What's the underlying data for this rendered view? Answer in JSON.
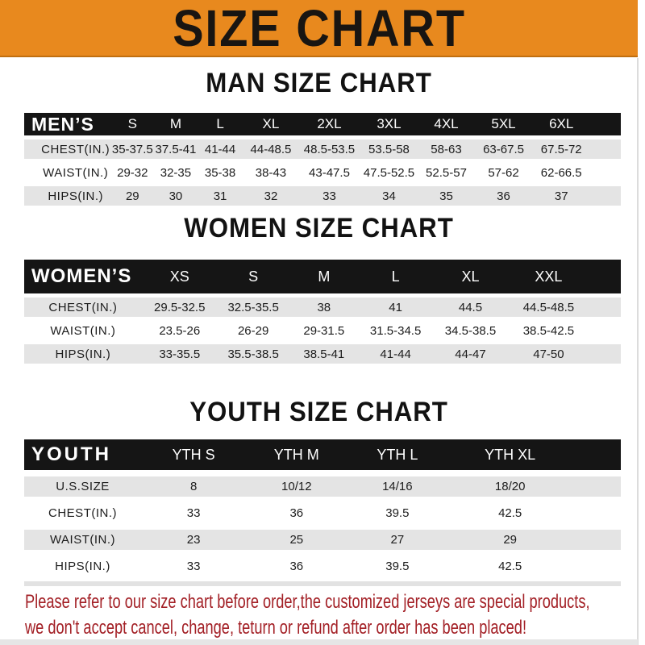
{
  "banner": {
    "title": "SIZE CHART",
    "bg_color": "#E8891E",
    "text_color": "#181512"
  },
  "sections": {
    "men": {
      "title": "MAN SIZE CHART",
      "table": {
        "corner_label": "MEN’S",
        "columns": [
          "S",
          "M",
          "L",
          "XL",
          "2XL",
          "3XL",
          "4XL",
          "5XL",
          "6XL"
        ],
        "rows": [
          {
            "label": "CHEST(IN.)",
            "values": [
              "35-37.5",
              "37.5-41",
              "41-44",
              "44-48.5",
              "48.5-53.5",
              "53.5-58",
              "58-63",
              "63-67.5",
              "67.5-72"
            ]
          },
          {
            "label": "WAIST(IN.)",
            "values": [
              "29-32",
              "32-35",
              "35-38",
              "38-43",
              "43-47.5",
              "47.5-52.5",
              "52.5-57",
              "57-62",
              "62-66.5"
            ]
          },
          {
            "label": "HIPS(IN.)",
            "values": [
              "29",
              "30",
              "31",
              "32",
              "33",
              "34",
              "35",
              "36",
              "37"
            ]
          }
        ]
      }
    },
    "women": {
      "title": "WOMEN SIZE CHART",
      "table": {
        "corner_label": "WOMEN’S",
        "columns": [
          "XS",
          "S",
          "M",
          "L",
          "XL",
          "XXL"
        ],
        "rows": [
          {
            "label": "CHEST(IN.)",
            "values": [
              "29.5-32.5",
              "32.5-35.5",
              "38",
              "41",
              "44.5",
              "44.5-48.5"
            ]
          },
          {
            "label": "WAIST(IN.)",
            "values": [
              "23.5-26",
              "26-29",
              "29-31.5",
              "31.5-34.5",
              "34.5-38.5",
              "38.5-42.5"
            ]
          },
          {
            "label": "HIPS(IN.)",
            "values": [
              "33-35.5",
              "35.5-38.5",
              "38.5-41",
              "41-44",
              "44-47",
              "47-50"
            ]
          }
        ]
      }
    },
    "youth": {
      "title": "YOUTH SIZE CHART",
      "table": {
        "corner_label": "YOUTH",
        "columns": [
          "YTH S",
          "YTH M",
          "YTH L",
          "YTH XL"
        ],
        "rows": [
          {
            "label": "U.S.SIZE",
            "values": [
              "8",
              "10/12",
              "14/16",
              "18/20"
            ]
          },
          {
            "label": "CHEST(IN.)",
            "values": [
              "33",
              "36",
              "39.5",
              "42.5"
            ]
          },
          {
            "label": "WAIST(IN.)",
            "values": [
              "23",
              "25",
              "27",
              "29"
            ]
          },
          {
            "label": "HIPS(IN.)",
            "values": [
              "33",
              "36",
              "39.5",
              "42.5"
            ]
          }
        ]
      }
    }
  },
  "disclaimer": {
    "line1": "Please refer to our size chart before order,the customized jerseys are special products,",
    "line2": "we don't accept cancel, change, teturn or refund after order has been placed!",
    "color": "#A32026"
  },
  "colors": {
    "header_bar": "#151515",
    "row_alt_gray": "#E4E4E4",
    "banner_orange": "#E8891E"
  }
}
